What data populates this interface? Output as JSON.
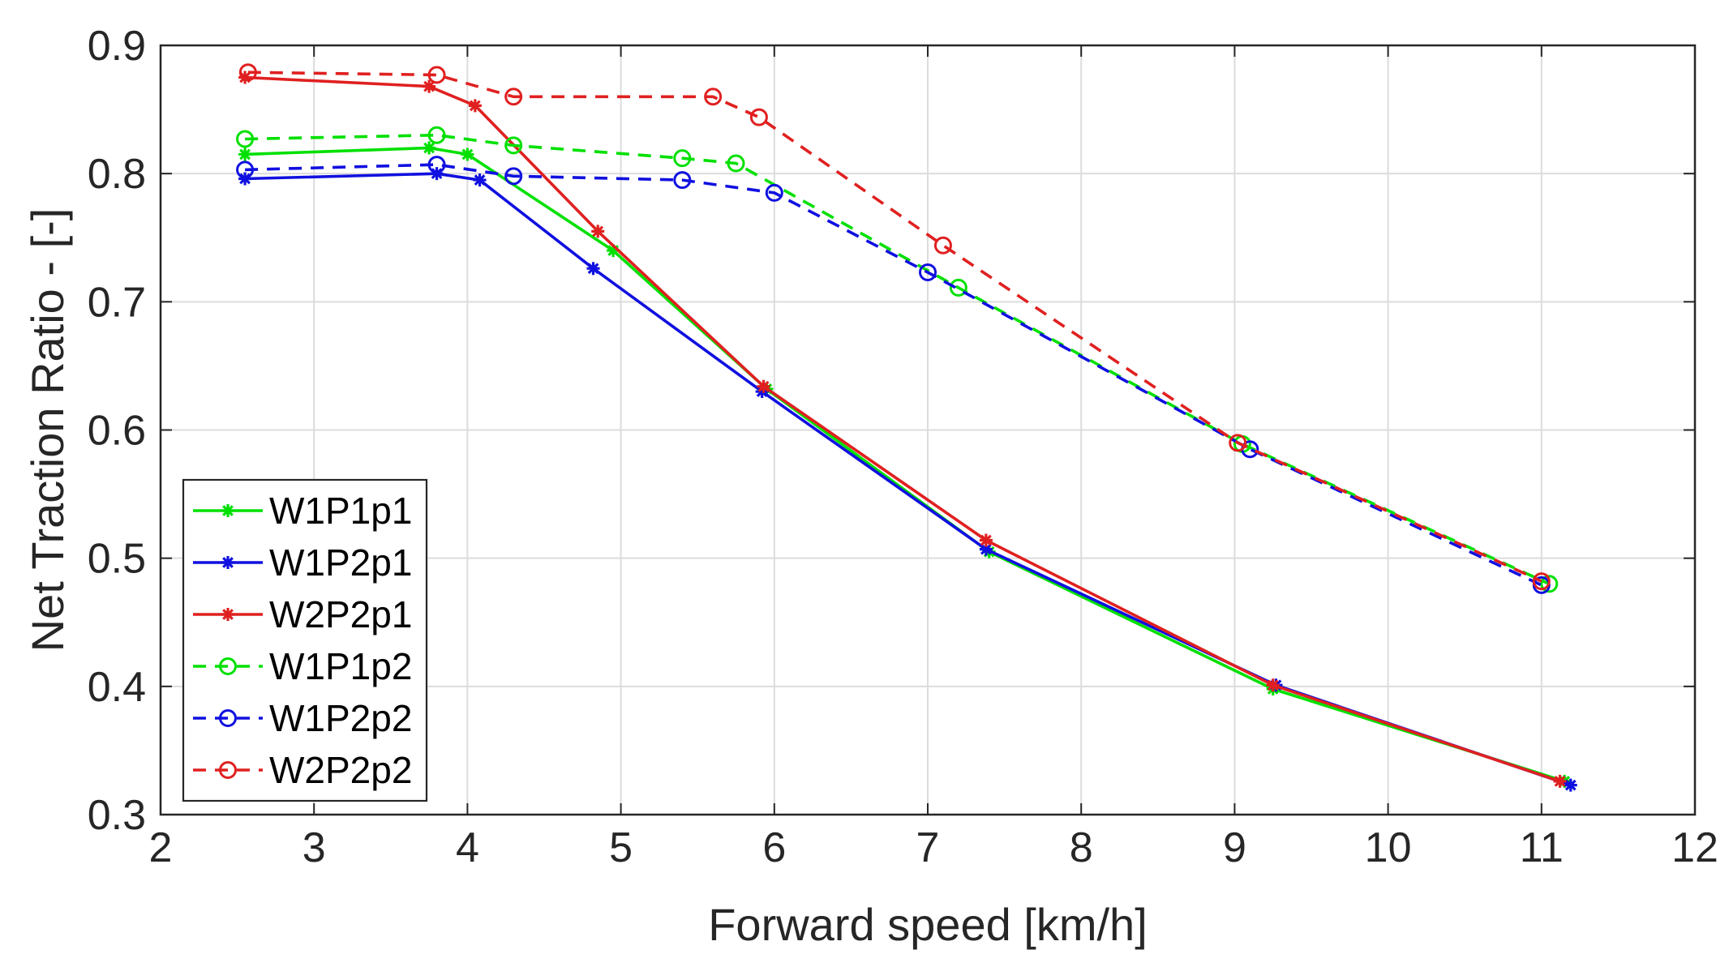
{
  "chart_data": {
    "type": "line",
    "title": "",
    "xlabel": "Forward speed [km/h]",
    "ylabel": "Net Traction Ratio - [-]",
    "xlim": [
      2,
      12
    ],
    "ylim": [
      0.3,
      0.9
    ],
    "xticks": [
      2,
      3,
      4,
      5,
      6,
      7,
      8,
      9,
      10,
      11,
      12
    ],
    "yticks": [
      0.3,
      0.4,
      0.5,
      0.6,
      0.7,
      0.8,
      0.9
    ],
    "xtick_labels": [
      "2",
      "3",
      "4",
      "5",
      "6",
      "7",
      "8",
      "9",
      "10",
      "11",
      "12"
    ],
    "ytick_labels": [
      "0.3",
      "0.4",
      "0.5",
      "0.6",
      "0.7",
      "0.8",
      "0.9"
    ],
    "grid": true,
    "legend_position": "bottom-left",
    "series": [
      {
        "name": "W1P1p1",
        "color": "#00e000",
        "style": "solid",
        "marker": "star",
        "x": [
          2.55,
          3.75,
          4.0,
          4.95,
          5.95,
          7.4,
          9.25,
          11.15
        ],
        "y": [
          0.815,
          0.82,
          0.815,
          0.74,
          0.632,
          0.505,
          0.398,
          0.326
        ]
      },
      {
        "name": "W1P2p1",
        "color": "#1010e0",
        "style": "solid",
        "marker": "star",
        "x": [
          2.55,
          3.8,
          4.08,
          4.82,
          5.92,
          7.38,
          9.27,
          11.19
        ],
        "y": [
          0.796,
          0.8,
          0.795,
          0.726,
          0.63,
          0.507,
          0.401,
          0.323
        ]
      },
      {
        "name": "W2P2p1",
        "color": "#e02020",
        "style": "solid",
        "marker": "star",
        "x": [
          2.55,
          3.75,
          4.05,
          4.85,
          5.93,
          7.38,
          9.25,
          11.12
        ],
        "y": [
          0.875,
          0.868,
          0.853,
          0.755,
          0.634,
          0.514,
          0.401,
          0.326
        ]
      },
      {
        "name": "W1P1p2",
        "color": "#00e000",
        "style": "dashed",
        "marker": "circle",
        "x": [
          2.55,
          3.8,
          4.3,
          5.4,
          5.75,
          7.2,
          9.05,
          11.05
        ],
        "y": [
          0.827,
          0.83,
          0.822,
          0.812,
          0.808,
          0.711,
          0.589,
          0.48
        ]
      },
      {
        "name": "W1P2p2",
        "color": "#1010e0",
        "style": "dashed",
        "marker": "circle",
        "x": [
          2.55,
          3.8,
          4.3,
          5.4,
          6.0,
          7.0,
          9.1,
          11.0
        ],
        "y": [
          0.803,
          0.807,
          0.798,
          0.795,
          0.785,
          0.723,
          0.585,
          0.479
        ]
      },
      {
        "name": "W2P2p2",
        "color": "#e02020",
        "style": "dashed",
        "marker": "circle",
        "x": [
          2.57,
          3.8,
          4.3,
          5.6,
          5.9,
          7.1,
          9.02,
          11.0
        ],
        "y": [
          0.879,
          0.877,
          0.86,
          0.86,
          0.844,
          0.744,
          0.59,
          0.482
        ]
      }
    ]
  }
}
